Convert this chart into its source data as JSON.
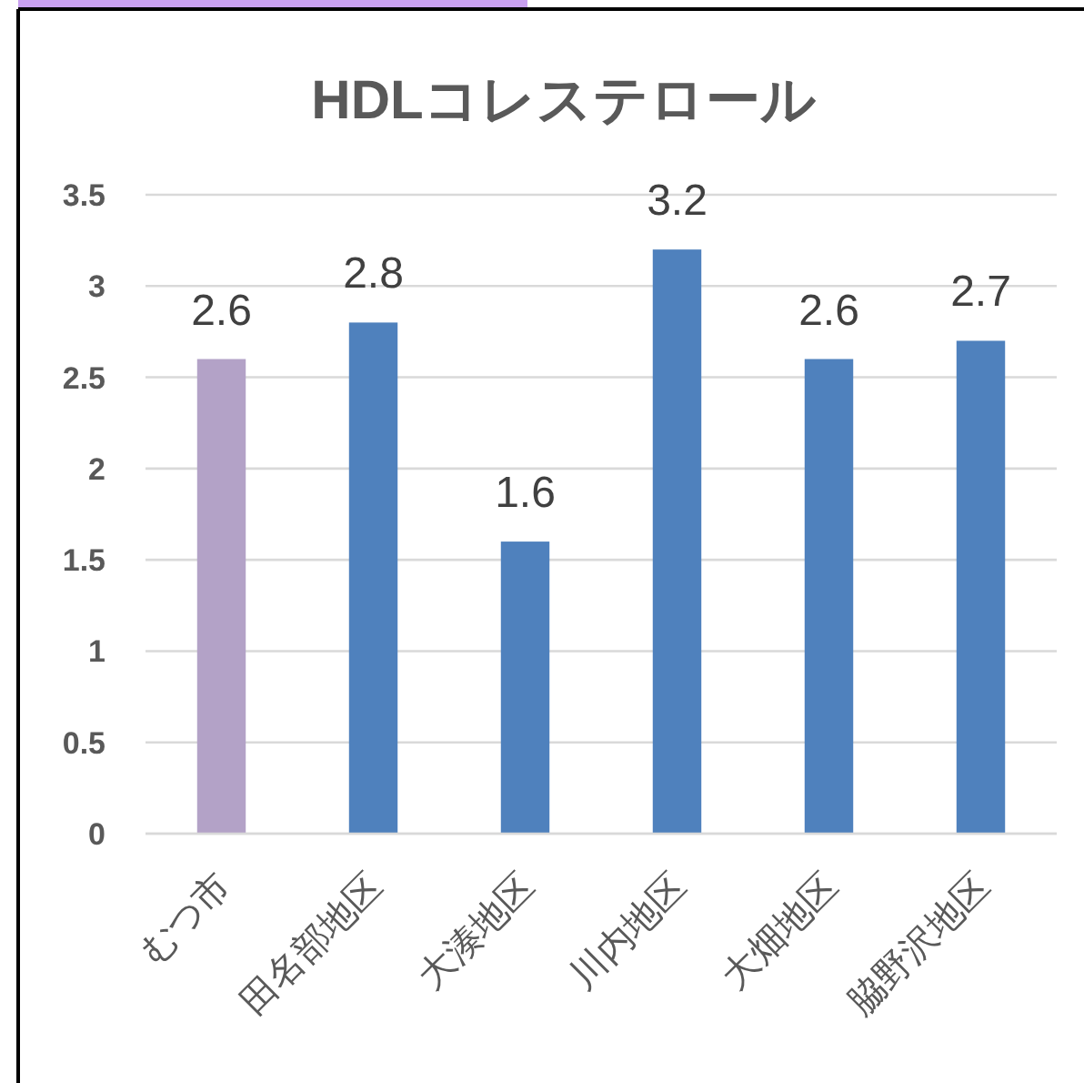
{
  "chart_data": {
    "type": "bar",
    "title": "HDLコレステロール",
    "categories": [
      "むつ市",
      "田名部地区",
      "大湊地区",
      "川内地区",
      "大畑地区",
      "脇野沢地区"
    ],
    "values": [
      2.6,
      2.8,
      1.6,
      3.2,
      2.6,
      2.7
    ],
    "colors": [
      "#b3a2c7",
      "#4f81bd",
      "#4f81bd",
      "#4f81bd",
      "#4f81bd",
      "#4f81bd"
    ],
    "ylim": [
      0,
      3.5
    ],
    "yticks": [
      0,
      0.5,
      1,
      1.5,
      2,
      2.5,
      3,
      3.5
    ],
    "grid": "y",
    "data_labels": true
  }
}
